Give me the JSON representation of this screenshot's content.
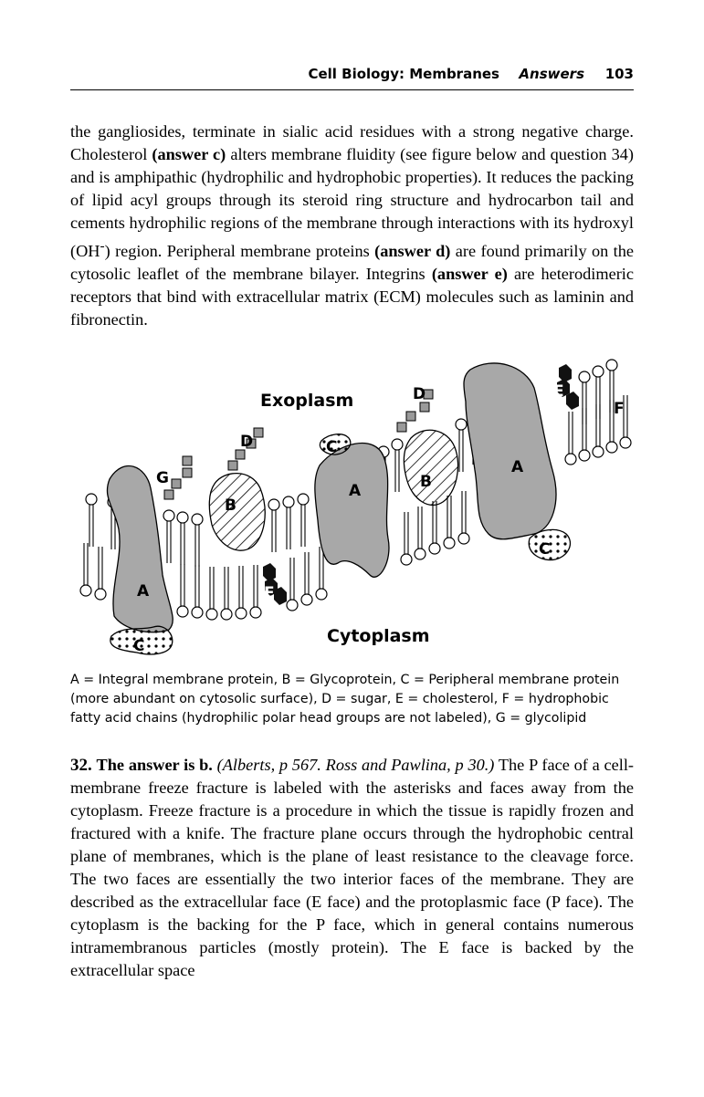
{
  "header": {
    "section": "Cell Biology: Membranes",
    "answers": "Answers",
    "page_number": "103"
  },
  "paragraph1": {
    "t1": "the gangliosides, terminate in sialic acid residues with a strong negative charge. Cholesterol ",
    "b1": "(answer c)",
    "t2": " alters membrane fluidity (see figure below and question 34) and is amphipathic (hydrophilic and hydrophobic properties). It reduces the packing of lipid acyl groups through its steroid ring structure and hydrocarbon tail and cements hydrophilic regions of the membrane through interactions with its hydroxyl (OH",
    "sup": "-",
    "t3": ") region. Peripheral membrane proteins ",
    "b2": "(answer d)",
    "t4": " are found primarily on the cytosolic leaflet of the membrane bilayer. Integrins ",
    "b3": "(answer e)",
    "t5": " are heterodimeric receptors that bind with extracellular matrix (ECM) molecules such as laminin and fibronectin."
  },
  "figure": {
    "exoplasm": "Exoplasm",
    "cytoplasm": "Cytoplasm",
    "labels": {
      "A": "A",
      "B": "B",
      "C": "C",
      "D": "D",
      "E": "E",
      "F": "F",
      "G": "G"
    },
    "colors": {
      "protein_fill": "#a8a8a8",
      "sugar_fill": "#9a9a9a",
      "cholesterol_fill": "#111111"
    }
  },
  "caption": "A = Integral membrane protein, B = Glycoprotein, C = Peripheral membrane protein (more abundant on cytosolic surface), D = sugar, E = cholesterol, F = hydrophobic fatty acid chains (hydrophilic polar head groups are not labeled), G = glycolipid",
  "paragraph2": {
    "number": "32.",
    "lead": "The answer is b.",
    "refs": "(Alberts, p 567. Ross and Pawlina, p 30.)",
    "text": " The P face of a cell-membrane freeze fracture is labeled with the asterisks and faces away from the cytoplasm. Freeze fracture is a procedure in which the tissue is rapidly frozen and fractured with a knife. The fracture plane occurs through the hydrophobic central plane of membranes, which is the plane of least resistance to the cleavage force. The two faces are essentially the two interior faces of the membrane. They are described as the extracellular face (E face) and the protoplasmic face (P face). The cytoplasm is the backing for the P face, which in general contains numerous intramembranous particles (mostly protein). The E face is backed by the extracellular space"
  }
}
